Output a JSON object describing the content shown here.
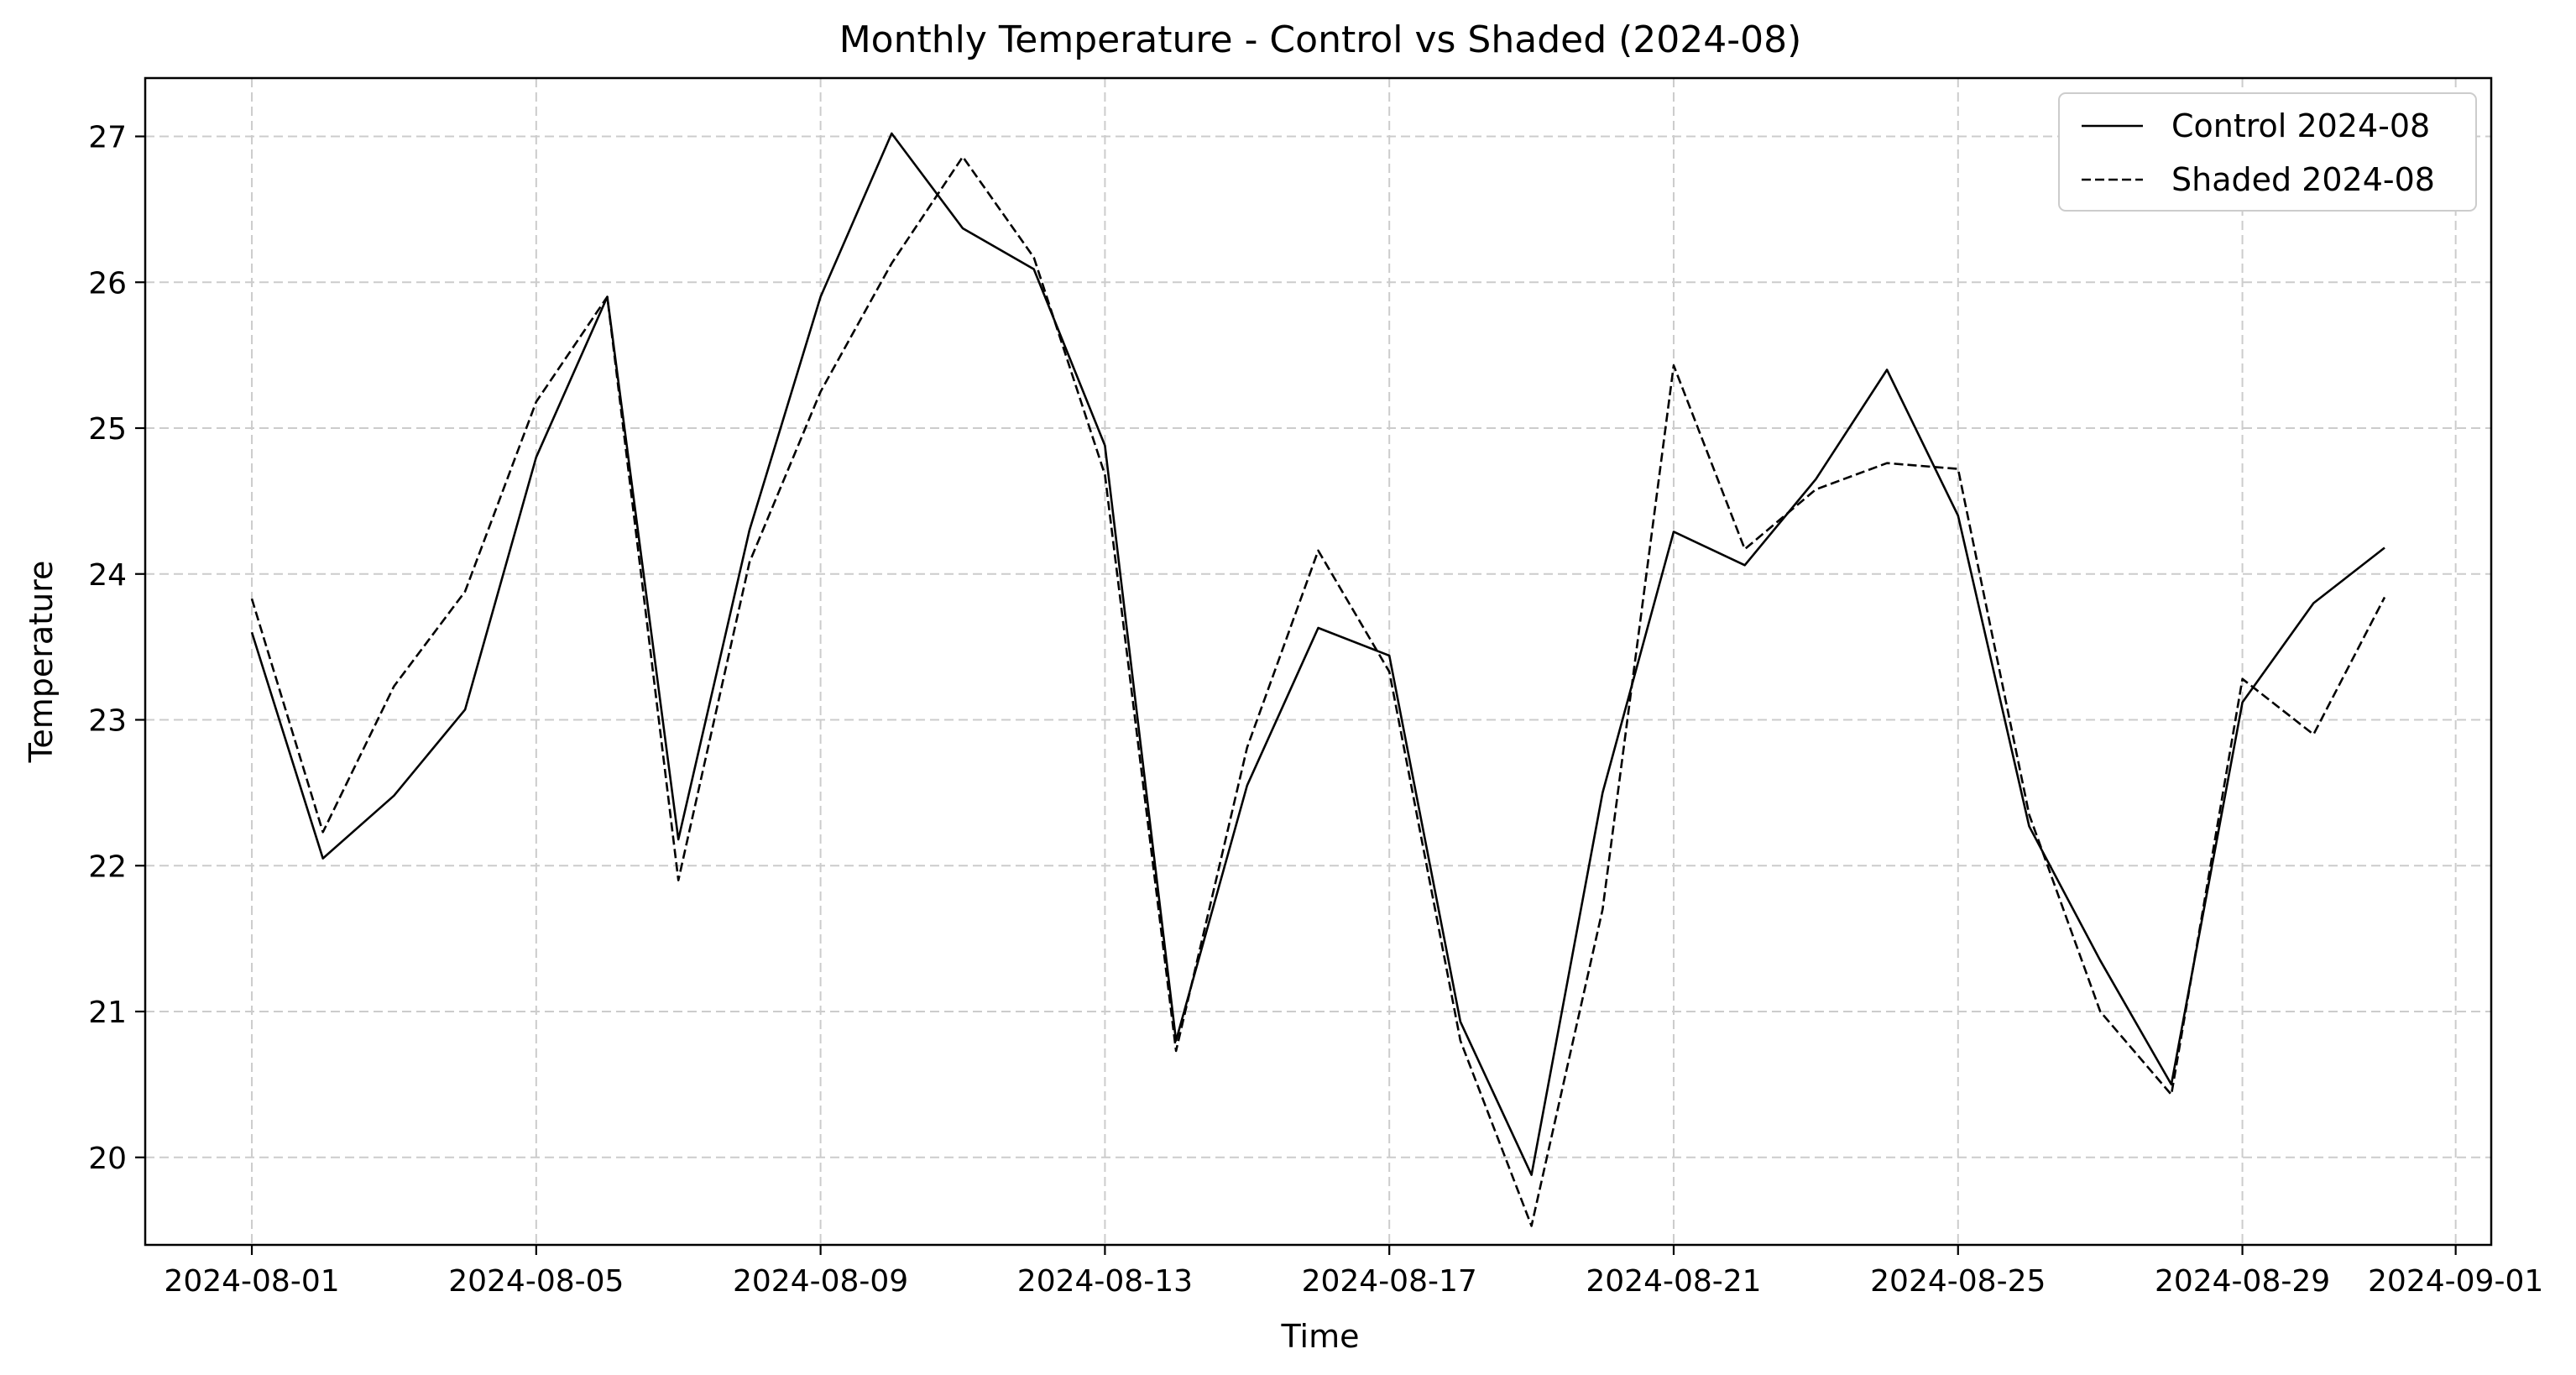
{
  "chart_data": {
    "type": "line",
    "title": "Monthly Temperature - Control vs Shaded (2024-08)",
    "xlabel": "Time",
    "ylabel": "Temperature",
    "x": [
      "2024-08-01",
      "2024-08-02",
      "2024-08-03",
      "2024-08-04",
      "2024-08-05",
      "2024-08-06",
      "2024-08-07",
      "2024-08-08",
      "2024-08-09",
      "2024-08-10",
      "2024-08-11",
      "2024-08-12",
      "2024-08-13",
      "2024-08-14",
      "2024-08-15",
      "2024-08-16",
      "2024-08-17",
      "2024-08-18",
      "2024-08-19",
      "2024-08-20",
      "2024-08-21",
      "2024-08-22",
      "2024-08-23",
      "2024-08-24",
      "2024-08-25",
      "2024-08-26",
      "2024-08-27",
      "2024-08-28",
      "2024-08-29",
      "2024-08-30",
      "2024-08-31"
    ],
    "series": [
      {
        "name": "Control 2024-08",
        "style": "solid",
        "values": [
          23.6,
          22.05,
          22.48,
          23.07,
          24.8,
          25.9,
          22.18,
          24.3,
          25.9,
          27.02,
          26.37,
          26.09,
          24.88,
          20.8,
          22.55,
          23.63,
          23.44,
          20.93,
          19.88,
          22.5,
          24.29,
          24.06,
          24.65,
          25.4,
          24.4,
          22.27,
          21.35,
          20.5,
          23.12,
          23.8,
          24.18
        ]
      },
      {
        "name": "Shaded 2024-08",
        "style": "dashed",
        "values": [
          23.83,
          22.23,
          23.23,
          23.88,
          25.18,
          25.9,
          21.9,
          24.08,
          25.25,
          26.13,
          26.86,
          26.17,
          24.68,
          20.73,
          22.81,
          24.16,
          23.33,
          20.8,
          19.53,
          21.7,
          25.43,
          24.17,
          24.58,
          24.76,
          24.72,
          22.35,
          21.0,
          20.43,
          23.28,
          22.9,
          23.84
        ]
      }
    ],
    "y_ticks": [
      "20",
      "21",
      "22",
      "23",
      "24",
      "25",
      "26",
      "27"
    ],
    "x_ticks": [
      "2024-08-01",
      "2024-08-05",
      "2024-08-09",
      "2024-08-13",
      "2024-08-17",
      "2024-08-21",
      "2024-08-25",
      "2024-08-29",
      "2024-09-01"
    ],
    "ylim": [
      19.4,
      27.4
    ],
    "xlim": [
      "2024-07-30 12:00",
      "2024-09-01 12:00"
    ],
    "grid": true,
    "legend": "top-right",
    "colors": {
      "line": "#000000",
      "grid": "#cccccc"
    }
  }
}
